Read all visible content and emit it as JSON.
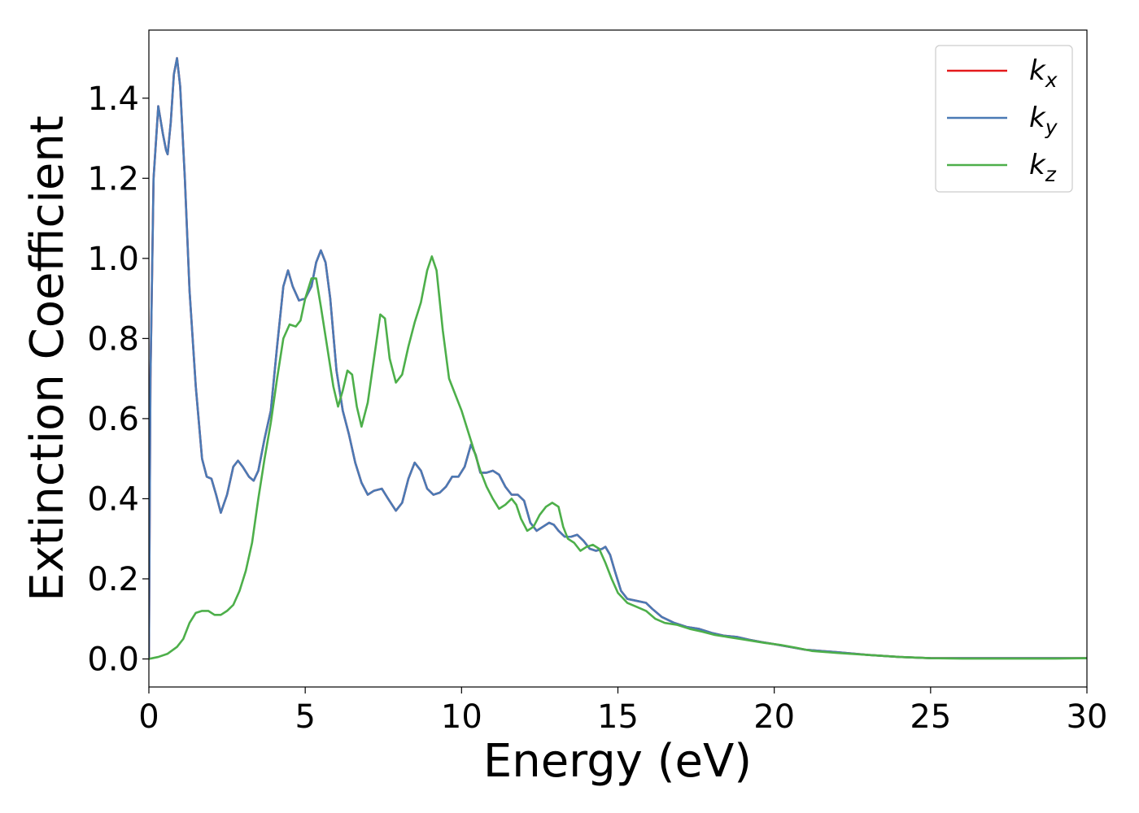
{
  "chart_data": {
    "type": "line",
    "xlabel": "Energy (eV)",
    "ylabel": "Extinction Coefficient",
    "xlim": [
      0,
      30
    ],
    "ylim": [
      -0.07,
      1.57
    ],
    "xticks": [
      "0",
      "5",
      "10",
      "15",
      "20",
      "25",
      "30"
    ],
    "yticks": [
      "0.0",
      "0.2",
      "0.4",
      "0.6",
      "0.8",
      "1.0",
      "1.2",
      "1.4"
    ],
    "grid": false,
    "legend_position": "top-right",
    "series": [
      {
        "name": "k_x",
        "base": "k",
        "sub": "x",
        "color": "#e41a1c",
        "x": [
          0.0,
          0.05,
          0.15,
          0.3,
          0.45,
          0.55,
          0.6,
          0.7,
          0.8,
          0.9,
          1.0,
          1.15,
          1.3,
          1.5,
          1.7,
          1.85,
          2.0,
          2.15,
          2.3,
          2.5,
          2.7,
          2.85,
          3.0,
          3.2,
          3.35,
          3.5,
          3.7,
          3.9,
          4.1,
          4.3,
          4.45,
          4.6,
          4.8,
          5.0,
          5.2,
          5.35,
          5.5,
          5.65,
          5.8,
          6.0,
          6.2,
          6.4,
          6.6,
          6.8,
          7.0,
          7.2,
          7.45,
          7.65,
          7.9,
          8.1,
          8.3,
          8.5,
          8.7,
          8.9,
          9.1,
          9.3,
          9.5,
          9.7,
          9.9,
          10.1,
          10.3,
          10.45,
          10.6,
          10.8,
          11.0,
          11.2,
          11.4,
          11.6,
          11.8,
          12.0,
          12.2,
          12.4,
          12.6,
          12.8,
          12.95,
          13.1,
          13.3,
          13.5,
          13.7,
          13.9,
          14.1,
          14.3,
          14.5,
          14.6,
          14.75,
          14.9,
          15.1,
          15.3,
          15.6,
          15.9,
          16.1,
          16.4,
          16.8,
          17.2,
          17.6,
          18.0,
          18.4,
          18.8,
          19.2,
          19.6,
          20.0,
          20.5,
          21.0,
          22.0,
          23.0,
          24.0,
          25.0,
          26.0,
          27.0,
          28.0,
          29.0,
          30.0
        ],
        "y": [
          0.0,
          0.7,
          1.2,
          1.38,
          1.31,
          1.27,
          1.26,
          1.34,
          1.46,
          1.5,
          1.43,
          1.2,
          0.92,
          0.68,
          0.5,
          0.455,
          0.45,
          0.41,
          0.365,
          0.41,
          0.48,
          0.495,
          0.48,
          0.455,
          0.445,
          0.47,
          0.55,
          0.62,
          0.78,
          0.93,
          0.97,
          0.93,
          0.895,
          0.9,
          0.93,
          0.99,
          1.02,
          0.99,
          0.9,
          0.72,
          0.62,
          0.56,
          0.49,
          0.44,
          0.41,
          0.42,
          0.425,
          0.4,
          0.37,
          0.39,
          0.45,
          0.49,
          0.47,
          0.425,
          0.41,
          0.415,
          0.43,
          0.455,
          0.455,
          0.48,
          0.535,
          0.51,
          0.465,
          0.465,
          0.47,
          0.46,
          0.43,
          0.41,
          0.41,
          0.395,
          0.34,
          0.32,
          0.33,
          0.34,
          0.335,
          0.32,
          0.305,
          0.305,
          0.31,
          0.295,
          0.275,
          0.27,
          0.275,
          0.28,
          0.26,
          0.22,
          0.17,
          0.15,
          0.145,
          0.14,
          0.125,
          0.105,
          0.09,
          0.08,
          0.075,
          0.065,
          0.058,
          0.055,
          0.048,
          0.042,
          0.037,
          0.03,
          0.023,
          0.017,
          0.01,
          0.005,
          0.002,
          0.002,
          0.002,
          0.002,
          0.002,
          0.002
        ]
      },
      {
        "name": "k_y",
        "base": "k",
        "sub": "y",
        "color": "#4a7ab5",
        "x": [
          0.0,
          0.05,
          0.15,
          0.3,
          0.45,
          0.55,
          0.6,
          0.7,
          0.8,
          0.9,
          1.0,
          1.15,
          1.3,
          1.5,
          1.7,
          1.85,
          2.0,
          2.15,
          2.3,
          2.5,
          2.7,
          2.85,
          3.0,
          3.2,
          3.35,
          3.5,
          3.7,
          3.9,
          4.1,
          4.3,
          4.45,
          4.6,
          4.8,
          5.0,
          5.2,
          5.35,
          5.5,
          5.65,
          5.8,
          6.0,
          6.2,
          6.4,
          6.6,
          6.8,
          7.0,
          7.2,
          7.45,
          7.65,
          7.9,
          8.1,
          8.3,
          8.5,
          8.7,
          8.9,
          9.1,
          9.3,
          9.5,
          9.7,
          9.9,
          10.1,
          10.3,
          10.45,
          10.6,
          10.8,
          11.0,
          11.2,
          11.4,
          11.6,
          11.8,
          12.0,
          12.2,
          12.4,
          12.6,
          12.8,
          12.95,
          13.1,
          13.3,
          13.5,
          13.7,
          13.9,
          14.1,
          14.3,
          14.5,
          14.6,
          14.75,
          14.9,
          15.1,
          15.3,
          15.6,
          15.9,
          16.1,
          16.4,
          16.8,
          17.2,
          17.6,
          18.0,
          18.4,
          18.8,
          19.2,
          19.6,
          20.0,
          20.5,
          21.0,
          22.0,
          23.0,
          24.0,
          25.0,
          26.0,
          27.0,
          28.0,
          29.0,
          30.0
        ],
        "y": [
          0.0,
          0.7,
          1.2,
          1.38,
          1.31,
          1.27,
          1.26,
          1.34,
          1.46,
          1.5,
          1.43,
          1.2,
          0.92,
          0.68,
          0.5,
          0.455,
          0.45,
          0.41,
          0.365,
          0.41,
          0.48,
          0.495,
          0.48,
          0.455,
          0.445,
          0.47,
          0.55,
          0.62,
          0.78,
          0.93,
          0.97,
          0.93,
          0.895,
          0.9,
          0.93,
          0.99,
          1.02,
          0.99,
          0.9,
          0.72,
          0.62,
          0.56,
          0.49,
          0.44,
          0.41,
          0.42,
          0.425,
          0.4,
          0.37,
          0.39,
          0.45,
          0.49,
          0.47,
          0.425,
          0.41,
          0.415,
          0.43,
          0.455,
          0.455,
          0.48,
          0.535,
          0.51,
          0.465,
          0.465,
          0.47,
          0.46,
          0.43,
          0.41,
          0.41,
          0.395,
          0.34,
          0.32,
          0.33,
          0.34,
          0.335,
          0.32,
          0.305,
          0.305,
          0.31,
          0.295,
          0.275,
          0.27,
          0.275,
          0.28,
          0.26,
          0.22,
          0.17,
          0.15,
          0.145,
          0.14,
          0.125,
          0.105,
          0.09,
          0.08,
          0.075,
          0.065,
          0.058,
          0.055,
          0.048,
          0.042,
          0.037,
          0.03,
          0.023,
          0.017,
          0.01,
          0.005,
          0.002,
          0.002,
          0.002,
          0.002,
          0.002,
          0.002
        ]
      },
      {
        "name": "k_z",
        "base": "k",
        "sub": "z",
        "color": "#4daf4a",
        "x": [
          0.0,
          0.3,
          0.6,
          0.9,
          1.1,
          1.3,
          1.5,
          1.7,
          1.9,
          2.1,
          2.3,
          2.5,
          2.7,
          2.9,
          3.1,
          3.3,
          3.5,
          3.7,
          3.9,
          4.1,
          4.3,
          4.5,
          4.7,
          4.85,
          5.0,
          5.2,
          5.35,
          5.5,
          5.7,
          5.9,
          6.05,
          6.2,
          6.35,
          6.5,
          6.65,
          6.8,
          7.0,
          7.2,
          7.4,
          7.55,
          7.7,
          7.9,
          8.1,
          8.3,
          8.5,
          8.7,
          8.9,
          9.05,
          9.2,
          9.4,
          9.6,
          9.8,
          10.0,
          10.2,
          10.4,
          10.6,
          10.8,
          11.0,
          11.2,
          11.4,
          11.6,
          11.75,
          11.9,
          12.1,
          12.3,
          12.5,
          12.7,
          12.9,
          13.1,
          13.25,
          13.4,
          13.6,
          13.8,
          14.0,
          14.2,
          14.4,
          14.6,
          14.8,
          15.0,
          15.3,
          15.6,
          15.9,
          16.2,
          16.5,
          16.9,
          17.3,
          17.7,
          18.1,
          18.5,
          18.9,
          19.3,
          19.7,
          20.2,
          20.7,
          21.2,
          22.0,
          23.0,
          24.0,
          25.0,
          26.0,
          27.0,
          28.0,
          29.0,
          30.0
        ],
        "y": [
          0.0,
          0.005,
          0.013,
          0.03,
          0.05,
          0.09,
          0.115,
          0.12,
          0.12,
          0.11,
          0.11,
          0.12,
          0.135,
          0.17,
          0.22,
          0.29,
          0.4,
          0.5,
          0.59,
          0.7,
          0.8,
          0.835,
          0.83,
          0.845,
          0.9,
          0.95,
          0.95,
          0.88,
          0.78,
          0.68,
          0.63,
          0.67,
          0.72,
          0.71,
          0.63,
          0.58,
          0.64,
          0.75,
          0.86,
          0.85,
          0.75,
          0.69,
          0.71,
          0.78,
          0.84,
          0.89,
          0.97,
          1.005,
          0.97,
          0.82,
          0.7,
          0.66,
          0.62,
          0.57,
          0.52,
          0.47,
          0.43,
          0.4,
          0.375,
          0.385,
          0.4,
          0.385,
          0.35,
          0.32,
          0.33,
          0.36,
          0.38,
          0.39,
          0.38,
          0.33,
          0.3,
          0.29,
          0.27,
          0.28,
          0.285,
          0.275,
          0.24,
          0.2,
          0.165,
          0.14,
          0.13,
          0.12,
          0.1,
          0.09,
          0.085,
          0.075,
          0.068,
          0.06,
          0.055,
          0.05,
          0.045,
          0.04,
          0.035,
          0.028,
          0.02,
          0.015,
          0.01,
          0.005,
          0.002,
          0.001,
          0.001,
          0.001,
          0.001,
          0.002
        ]
      }
    ]
  }
}
